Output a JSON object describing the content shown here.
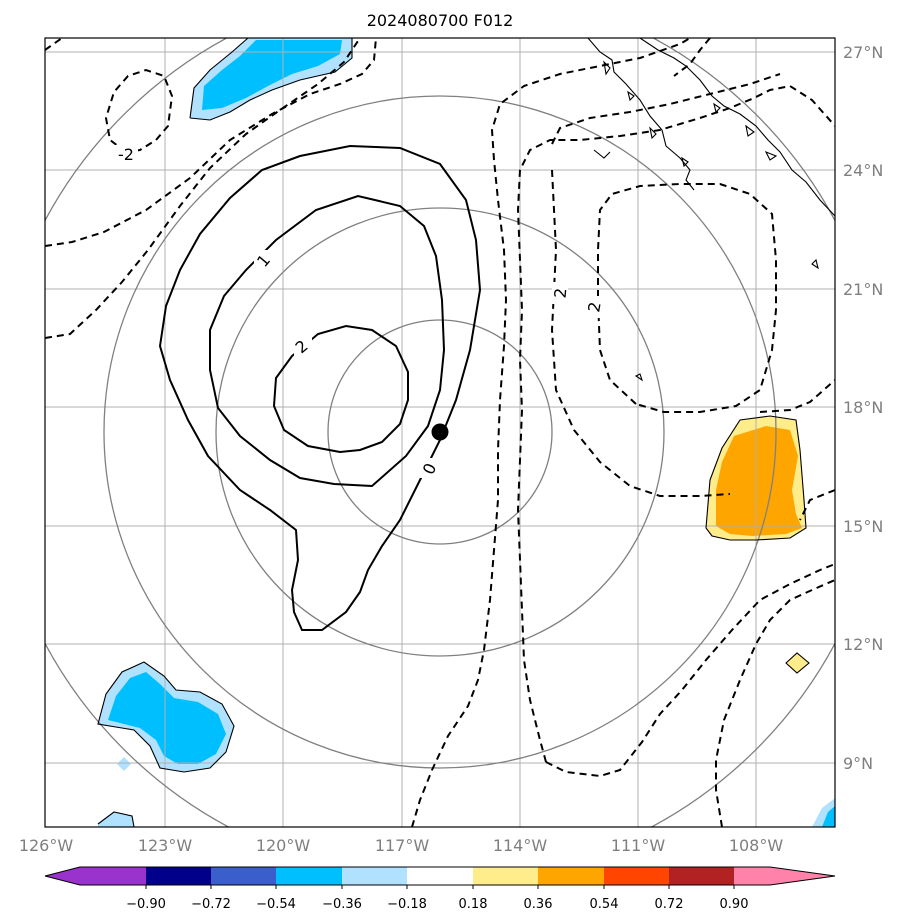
{
  "title": "2024080700 F012",
  "map": {
    "lon_labels": [
      "126°W",
      "123°W",
      "120°W",
      "117°W",
      "114°W",
      "111°W",
      "108°W"
    ],
    "lat_labels": [
      "27°N",
      "24°N",
      "21°N",
      "18°N",
      "15°N",
      "12°N",
      "9°N"
    ],
    "contour_labels": [
      "-2",
      "1",
      "2",
      "0",
      "2",
      "2"
    ]
  },
  "colorbar": {
    "tick_labels": [
      "−0.90",
      "−0.72",
      "−0.54",
      "−0.36",
      "−0.18",
      "0.18",
      "0.36",
      "0.54",
      "0.72",
      "0.90"
    ],
    "colors": [
      "#9a32cd",
      "#00008b",
      "#3a5fcd",
      "#00bfff",
      "#b0e2ff",
      "#ffffff",
      "#ffec8b",
      "#ffa500",
      "#ff4500",
      "#b22222",
      "#ff82ab"
    ]
  },
  "colors": {
    "grid": "#b0b0b0",
    "range_rings": "#808080",
    "contours": "#000000",
    "center_marker": "#000000"
  }
}
